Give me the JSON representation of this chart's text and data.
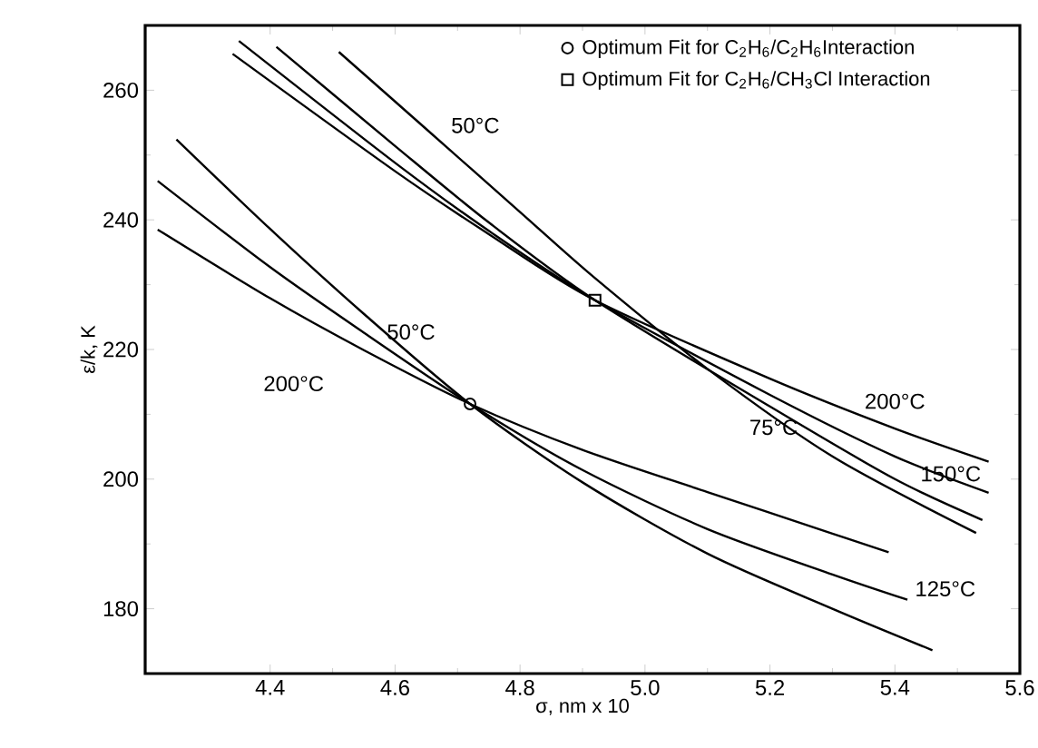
{
  "chart_data": {
    "type": "line",
    "xlabel": "σ, nm x 10",
    "ylabel": "ε/k, K",
    "xlim": [
      4.2,
      5.6
    ],
    "ylim": [
      170,
      270
    ],
    "xticks": [
      4.4,
      4.6,
      4.8,
      {
        "value": 5.0,
        "label": "5.0"
      },
      5.2,
      5.4,
      5.6
    ],
    "yticks": [
      180,
      200,
      220,
      240,
      260
    ],
    "legend": "top right",
    "series": [
      {
        "name": "200°C",
        "color": "#000000",
        "x": [
          4.34,
          4.6,
          4.75,
          4.92,
          5.2,
          5.4,
          5.55
        ],
        "values": [
          265.6,
          247.5,
          237.8,
          227.6,
          215.5,
          207.8,
          202.7
        ]
      },
      {
        "name": "150°C",
        "color": "#000000",
        "x": [
          4.35,
          4.6,
          4.75,
          4.92,
          5.2,
          5.4,
          5.55
        ],
        "values": [
          267.6,
          248.8,
          238.3,
          227.6,
          213.0,
          203.5,
          197.9
        ]
      },
      {
        "name": "75°C",
        "color": "#000000",
        "x": [
          4.41,
          4.6,
          4.75,
          4.92,
          5.2,
          5.4,
          5.54
        ],
        "values": [
          266.7,
          251.4,
          239.6,
          227.6,
          211.2,
          200.0,
          193.7
        ]
      },
      {
        "name": "50°C",
        "color": "#000000",
        "x": [
          4.51,
          4.65,
          4.8,
          4.92,
          5.1,
          5.3,
          5.53
        ],
        "values": [
          265.9,
          254.0,
          241.2,
          231.0,
          217.0,
          203.5,
          191.7
        ]
      },
      {
        "name": "50°C",
        "color": "#000000",
        "x": [
          4.25,
          4.4,
          4.55,
          4.72,
          4.9,
          5.1,
          5.3,
          5.46
        ],
        "values": [
          252.4,
          238.6,
          225.5,
          211.6,
          199.5,
          188.5,
          180.0,
          173.6
        ]
      },
      {
        "name": "125°C",
        "color": "#000000",
        "x": [
          4.22,
          4.4,
          4.55,
          4.72,
          4.9,
          5.1,
          5.3,
          5.42
        ],
        "values": [
          246.0,
          232.7,
          222.6,
          211.6,
          201.4,
          192.3,
          185.3,
          181.4
        ]
      },
      {
        "name": "200°C",
        "color": "#000000",
        "x": [
          4.22,
          4.4,
          4.55,
          4.72,
          4.9,
          5.1,
          5.3,
          5.39
        ],
        "values": [
          238.5,
          227.9,
          219.9,
          211.6,
          204.5,
          198.0,
          191.6,
          188.7
        ]
      },
      {
        "type": "scatter",
        "marker": "circle",
        "color": "#000000",
        "name": "Optimum Fit for C$_{2}$H$_{6}$/C$_{2}$H$_{6}$Interaction",
        "x": [
          4.72
        ],
        "values": [
          211.6
        ]
      },
      {
        "type": "scatter",
        "marker": "square",
        "color": "#000000",
        "name": "Optimum Fit for C$_{2}$H$_{6}$/CH$_{3}$Cl Interaction",
        "x": [
          4.92
        ],
        "values": [
          227.6
        ]
      }
    ]
  }
}
